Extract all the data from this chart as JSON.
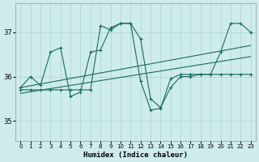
{
  "xlabel": "Humidex (Indice chaleur)",
  "bg_color": "#ceecea",
  "grid_color": "#aed4d0",
  "line_color": "#1a6b60",
  "xlim": [
    -0.5,
    23.5
  ],
  "ylim": [
    34.55,
    37.65
  ],
  "yticks": [
    35,
    36,
    37
  ],
  "xticks": [
    0,
    1,
    2,
    3,
    4,
    5,
    6,
    7,
    8,
    9,
    10,
    11,
    12,
    13,
    14,
    15,
    16,
    17,
    18,
    19,
    20,
    21,
    22,
    23
  ],
  "trend1": {
    "x": [
      0,
      23
    ],
    "y": [
      35.75,
      36.7
    ]
  },
  "trend2": {
    "x": [
      0,
      23
    ],
    "y": [
      35.62,
      36.45
    ]
  },
  "line3": {
    "x": [
      0,
      1,
      2,
      3,
      4,
      5,
      6,
      7,
      8,
      9,
      10,
      11,
      12,
      13,
      14,
      15,
      16,
      17,
      18,
      19,
      20,
      21,
      22,
      23
    ],
    "y": [
      35.75,
      36.0,
      35.8,
      36.55,
      36.65,
      35.55,
      35.65,
      36.55,
      36.6,
      37.1,
      37.2,
      37.2,
      36.85,
      35.5,
      35.3,
      35.75,
      36.0,
      36.0,
      36.05,
      36.05,
      36.05,
      36.05,
      36.05,
      36.05
    ]
  },
  "line4": {
    "x": [
      0,
      1,
      2,
      3,
      4,
      5,
      6,
      7,
      8,
      9,
      10,
      11,
      12,
      13,
      14,
      15,
      16,
      17,
      18,
      19,
      20,
      21,
      22,
      23
    ],
    "y": [
      35.7,
      35.7,
      35.7,
      35.7,
      35.7,
      35.7,
      35.7,
      35.7,
      37.15,
      37.05,
      37.2,
      37.2,
      35.9,
      35.25,
      35.28,
      35.95,
      36.05,
      36.05,
      36.05,
      36.05,
      36.55,
      37.2,
      37.2,
      37.0
    ]
  }
}
